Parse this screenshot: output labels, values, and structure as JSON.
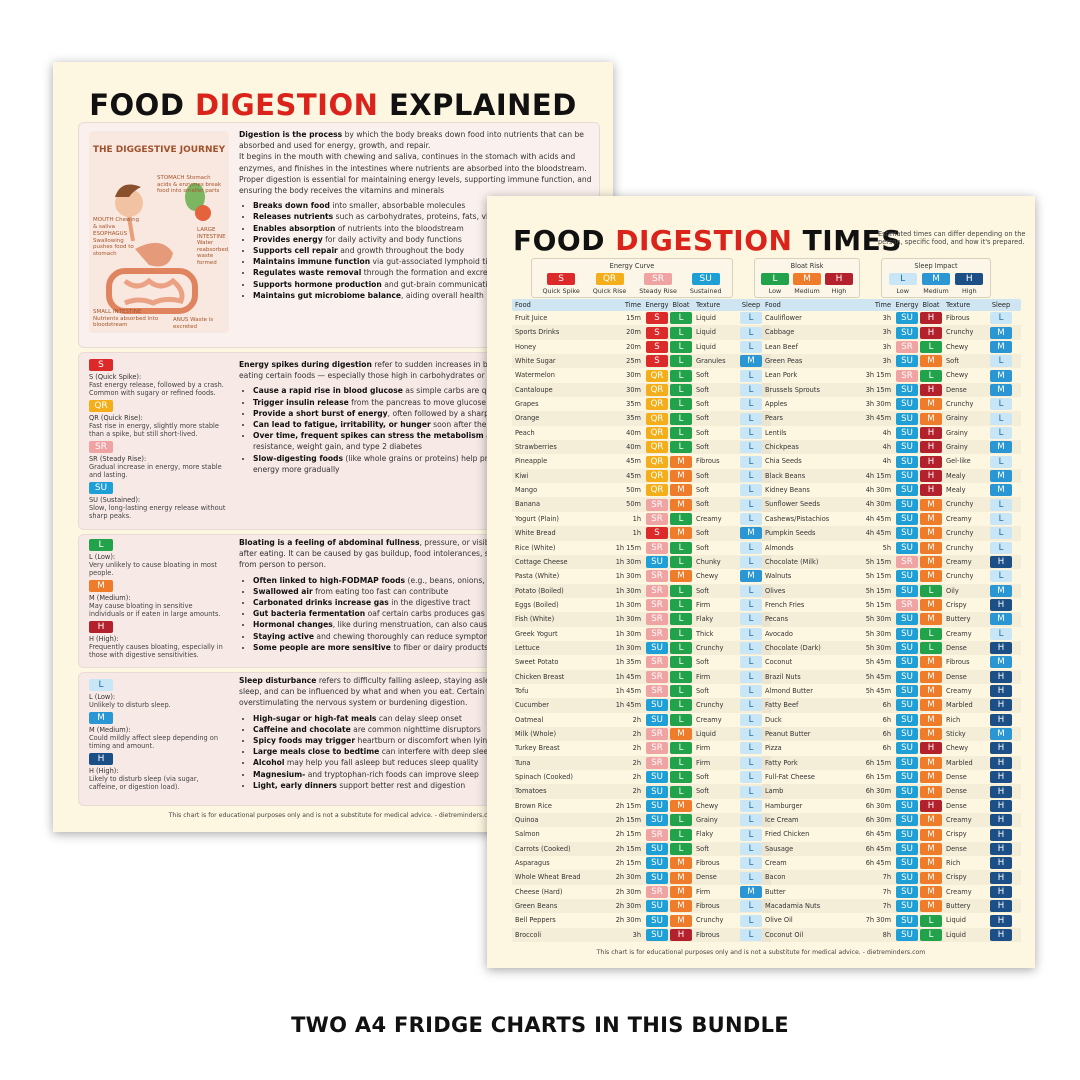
{
  "colors": {
    "S": "#dc2a2a",
    "QR": "#f4ae1a",
    "SR": "#f0a3a3",
    "SU": "#1e9fd6",
    "bL": "#22a24a",
    "bM": "#ee7c2a",
    "bH": "#b3212d",
    "sL": "#c8e6f6",
    "sM": "#2a97d4",
    "sH": "#1b4f85"
  },
  "sheet1": {
    "title_a": "FOOD ",
    "title_b": "DIGESTION",
    "title_c": " EXPLAINED",
    "illustration": {
      "title": "THE DIGGESTIVE JOURNEY",
      "stomach": "STOMACH Stomach acids & enzymes break food into smaller parts",
      "mouth": "MOUTH Chewing & saliva",
      "esophagus": "ESOPHAGUS Swallowing pushes food to stomach",
      "large": "LARGE INTESTINE Water reabsorbed, waste formed",
      "small": "SMALL INTESTINE Nutrients absorbed into bloodstream",
      "anus": "ANUS Waste is excreted"
    },
    "intro": {
      "p1a": "Digestion is the process",
      "p1b": " by which the body breaks down food into nutrients that can be absorbed and used for energy, growth, and repair.",
      "p2": "It begins in the mouth with chewing and saliva, continues in the stomach with acids and enzymes, and finishes in the intestines where nutrients are absorbed into the bloodstream.",
      "p3": "Proper digestion is essential for maintaining energy levels, supporting immune function, and ensuring the body receives the vitamins and minerals",
      "bullets": [
        {
          "b": "Breaks down food",
          "t": " into smaller, absorbable molecules"
        },
        {
          "b": "Releases nutrients",
          "t": " such as carbohydrates, proteins, fats, vitamins"
        },
        {
          "b": "Enables absorption",
          "t": " of nutrients into the bloodstream"
        },
        {
          "b": "Provides energy",
          "t": " for daily activity and body functions"
        },
        {
          "b": "Supports cell repair",
          "t": " and growth throughout the body"
        },
        {
          "b": "Maintains immune function",
          "t": " via gut-associated lymphoid tissue"
        },
        {
          "b": "Regulates waste removal",
          "t": " through the formation and excretion"
        },
        {
          "b": "Supports hormone production",
          "t": " and gut-brain communication"
        },
        {
          "b": "Maintains gut microbiome balance",
          "t": ", aiding overall health"
        }
      ]
    },
    "energy": {
      "legend": [
        {
          "code": "S",
          "label": "S (Quick Spike):",
          "desc": "Fast energy release, followed by a crash. Common with sugary or refined foods."
        },
        {
          "code": "QR",
          "label": "QR (Quick Rise):",
          "desc": "Fast rise in energy, slightly more stable than a spike, but still short-lived."
        },
        {
          "code": "SR",
          "label": "SR (Steady Rise):",
          "desc": "Gradual increase in energy, more stable and lasting."
        },
        {
          "code": "SU",
          "label": "SU (Sustained):",
          "desc": "Slow, long-lasting energy release without sharp peaks."
        }
      ],
      "p1a": "Energy spikes during digestion",
      "p1b": " refer to sudden increases in blood energy levels after eating certain foods — especially those high in carbohydrates or sugars.",
      "bullets": [
        {
          "b": "Cause a rapid rise in blood glucose",
          "t": " as simple carbs are quickly and absorbed"
        },
        {
          "b": "Trigger insulin release",
          "t": " from the pancreas to move glucose into"
        },
        {
          "b": "Provide a short burst of energy",
          "t": ", often followed by a sharp drop “crash”)"
        },
        {
          "b": "Can lead to fatigue, irritability, or hunger",
          "t": " soon after the spike"
        },
        {
          "b": "Over time, frequent spikes can stress the metabolism",
          "t": " and increase risk of insulin resistance, weight gain, and type 2 diabetes"
        },
        {
          "b": "Slow-digesting foods",
          "t": " (like whole grains or proteins) help prevent spikes by releasing energy more gradually"
        }
      ]
    },
    "bloat": {
      "legend": [
        {
          "code": "L",
          "label": "L (Low):",
          "desc": "Very unlikely to cause bloating in most people."
        },
        {
          "code": "M",
          "label": "M (Medium):",
          "desc": "May cause bloating in sensitive individuals or if eaten in large amounts."
        },
        {
          "code": "H",
          "label": "H (High):",
          "desc": "Frequently causes bloating, especially in those with digestive sensitivities."
        }
      ],
      "p1a": "Bloating is a feeling of abdominal fullness",
      "p1b": ", pressure, or visible swelling, often occurs after eating. It can be caused by gas buildup, food intolerances, slow digestion, and varies from person to person.",
      "bullets": [
        {
          "b": "Often linked to high-FODMAP foods",
          "t": " (e.g., beans, onions, wheat)"
        },
        {
          "b": "Swallowed air",
          "t": " from eating too fast can contribute"
        },
        {
          "b": "Carbonated drinks increase gas",
          "t": " in the digestive tract"
        },
        {
          "b": "Gut bacteria fermentation",
          "t": " oaf certain carbs produces gas"
        },
        {
          "b": "Hormonal changes",
          "t": ", like during menstruation, can also cause bloating"
        },
        {
          "b": "Staying active",
          "t": " and chewing thoroughly can reduce symptoms"
        },
        {
          "b": "Some people are more sensitive",
          "t": " to fiber or dairy products"
        }
      ]
    },
    "sleep": {
      "legend": [
        {
          "code": "L",
          "label": "L (Low):",
          "desc": "Unlikely to disturb sleep."
        },
        {
          "code": "M",
          "label": "M (Medium):",
          "desc": "Could mildly affect sleep depending on timing and amount."
        },
        {
          "code": "H",
          "label": "H (High):",
          "desc": "Likely to disturb sleep (via sugar, caffeine, or digestion load)."
        }
      ],
      "p1a": "Sleep disturbance",
      "p1b": " refers to difficulty falling asleep, staying asleep, or achieving restful sleep, and can be influenced by what and when you eat. Certain foods may disrupt sleep by overstimulating the nervous system or burdening digestion.",
      "bullets": [
        {
          "b": "High-sugar or high-fat meals",
          "t": " can delay sleep onset"
        },
        {
          "b": "Caffeine and chocolate",
          "t": " are common nighttime disruptors"
        },
        {
          "b": "Spicy foods may trigger",
          "t": " heartburn or discomfort when lying down"
        },
        {
          "b": "Large meals close to bedtime",
          "t": " can interfere with deep sleep"
        },
        {
          "b": "Alcohol",
          "t": " may help you fall asleep but reduces sleep quality"
        },
        {
          "b": "Magnesium-",
          "t": " and tryptophan-rich foods can improve sleep"
        },
        {
          "b": "Light, early dinners",
          "t": " support better rest and digestion"
        }
      ]
    },
    "footer": "This chart is for educational purposes only and is not a substitute for medical advice. - dietreminders.com"
  },
  "sheet2": {
    "title_a": "FOOD ",
    "title_b": "DIGESTION",
    "title_c": " TIMES",
    "note": "Estimated times can differ depending on the person, specific food, and how it's prepared.",
    "legend_energy": {
      "title": "Energy Curve",
      "items": [
        {
          "code": "S",
          "label": "Quick Spike"
        },
        {
          "code": "QR",
          "label": "Quick Rise"
        },
        {
          "code": "SR",
          "label": "Steady Rise"
        },
        {
          "code": "SU",
          "label": "Sustained"
        }
      ]
    },
    "legend_bloat": {
      "title": "Bloat Risk",
      "items": [
        {
          "code": "L",
          "label": "Low"
        },
        {
          "code": "M",
          "label": "Medium"
        },
        {
          "code": "H",
          "label": "High"
        }
      ]
    },
    "legend_sleep": {
      "title": "Sleep Impact",
      "items": [
        {
          "code": "L",
          "label": "Low"
        },
        {
          "code": "M",
          "label": "Medium"
        },
        {
          "code": "H",
          "label": "High"
        }
      ]
    },
    "headers": {
      "food": "Food",
      "time": "Time",
      "energy": "Energy",
      "bloat": "Bloat",
      "texture": "Texture",
      "sleep": "Sleep"
    },
    "left_rows": [
      [
        "Fruit Juice",
        "15m",
        "S",
        "L",
        "Liquid",
        "L"
      ],
      [
        "Sports Drinks",
        "20m",
        "S",
        "L",
        "Liquid",
        "L"
      ],
      [
        "Honey",
        "20m",
        "S",
        "L",
        "Liquid",
        "L"
      ],
      [
        "White Sugar",
        "25m",
        "S",
        "L",
        "Granules",
        "M"
      ],
      [
        "Watermelon",
        "30m",
        "QR",
        "L",
        "Soft",
        "L"
      ],
      [
        "Cantaloupe",
        "30m",
        "QR",
        "L",
        "Soft",
        "L"
      ],
      [
        "Grapes",
        "35m",
        "QR",
        "L",
        "Soft",
        "L"
      ],
      [
        "Orange",
        "35m",
        "QR",
        "L",
        "Soft",
        "L"
      ],
      [
        "Peach",
        "40m",
        "QR",
        "L",
        "Soft",
        "L"
      ],
      [
        "Strawberries",
        "40m",
        "QR",
        "L",
        "Soft",
        "L"
      ],
      [
        "Pineapple",
        "45m",
        "QR",
        "M",
        "Fibrous",
        "L"
      ],
      [
        "Kiwi",
        "45m",
        "QR",
        "M",
        "Soft",
        "L"
      ],
      [
        "Mango",
        "50m",
        "QR",
        "M",
        "Soft",
        "L"
      ],
      [
        "Banana",
        "50m",
        "SR",
        "M",
        "Soft",
        "L"
      ],
      [
        "Yogurt (Plain)",
        "1h",
        "SR",
        "L",
        "Creamy",
        "L"
      ],
      [
        "White Bread",
        "1h",
        "S",
        "M",
        "Soft",
        "M"
      ],
      [
        "Rice (White)",
        "1h 15m",
        "SR",
        "L",
        "Soft",
        "L"
      ],
      [
        "Cottage Cheese",
        "1h 30m",
        "SU",
        "L",
        "Chunky",
        "L"
      ],
      [
        "Pasta (White)",
        "1h 30m",
        "SR",
        "M",
        "Chewy",
        "M"
      ],
      [
        "Potato (Boiled)",
        "1h 30m",
        "SR",
        "L",
        "Soft",
        "L"
      ],
      [
        "Eggs (Boiled)",
        "1h 30m",
        "SR",
        "L",
        "Firm",
        "L"
      ],
      [
        "Fish (White)",
        "1h 30m",
        "SR",
        "L",
        "Flaky",
        "L"
      ],
      [
        "Greek Yogurt",
        "1h 30m",
        "SR",
        "L",
        "Thick",
        "L"
      ],
      [
        "Lettuce",
        "1h 30m",
        "SU",
        "L",
        "Crunchy",
        "L"
      ],
      [
        "Sweet Potato",
        "1h 35m",
        "SR",
        "L",
        "Soft",
        "L"
      ],
      [
        "Chicken Breast",
        "1h 45m",
        "SR",
        "L",
        "Firm",
        "L"
      ],
      [
        "Tofu",
        "1h 45m",
        "SR",
        "L",
        "Soft",
        "L"
      ],
      [
        "Cucumber",
        "1h 45m",
        "SU",
        "L",
        "Crunchy",
        "L"
      ],
      [
        "Oatmeal",
        "2h",
        "SU",
        "L",
        "Creamy",
        "L"
      ],
      [
        "Milk (Whole)",
        "2h",
        "SR",
        "M",
        "Liquid",
        "L"
      ],
      [
        "Turkey Breast",
        "2h",
        "SR",
        "L",
        "Firm",
        "L"
      ],
      [
        "Tuna",
        "2h",
        "SR",
        "L",
        "Firm",
        "L"
      ],
      [
        "Spinach (Cooked)",
        "2h",
        "SU",
        "L",
        "Soft",
        "L"
      ],
      [
        "Tomatoes",
        "2h",
        "SU",
        "L",
        "Soft",
        "L"
      ],
      [
        "Brown Rice",
        "2h 15m",
        "SU",
        "M",
        "Chewy",
        "L"
      ],
      [
        "Quinoa",
        "2h 15m",
        "SU",
        "L",
        "Grainy",
        "L"
      ],
      [
        "Salmon",
        "2h 15m",
        "SR",
        "L",
        "Flaky",
        "L"
      ],
      [
        "Carrots (Cooked)",
        "2h 15m",
        "SU",
        "L",
        "Soft",
        "L"
      ],
      [
        "Asparagus",
        "2h 15m",
        "SU",
        "M",
        "Fibrous",
        "L"
      ],
      [
        "Whole Wheat Bread",
        "2h 30m",
        "SU",
        "M",
        "Dense",
        "L"
      ],
      [
        "Cheese (Hard)",
        "2h 30m",
        "SR",
        "M",
        "Firm",
        "M"
      ],
      [
        "Green Beans",
        "2h 30m",
        "SU",
        "M",
        "Fibrous",
        "L"
      ],
      [
        "Bell Peppers",
        "2h 30m",
        "SU",
        "M",
        "Crunchy",
        "L"
      ],
      [
        "Broccoli",
        "3h",
        "SU",
        "H",
        "Fibrous",
        "L"
      ]
    ],
    "right_rows": [
      [
        "Cauliflower",
        "3h",
        "SU",
        "H",
        "Fibrous",
        "L"
      ],
      [
        "Cabbage",
        "3h",
        "SU",
        "H",
        "Crunchy",
        "M"
      ],
      [
        "Lean Beef",
        "3h",
        "SR",
        "L",
        "Chewy",
        "M"
      ],
      [
        "Green Peas",
        "3h",
        "SU",
        "M",
        "Soft",
        "L"
      ],
      [
        "Lean Pork",
        "3h 15m",
        "SR",
        "L",
        "Chewy",
        "M"
      ],
      [
        "Brussels Sprouts",
        "3h 15m",
        "SU",
        "H",
        "Dense",
        "M"
      ],
      [
        "Apples",
        "3h 30m",
        "SU",
        "M",
        "Crunchy",
        "L"
      ],
      [
        "Pears",
        "3h 45m",
        "SU",
        "M",
        "Grainy",
        "L"
      ],
      [
        "Lentils",
        "4h",
        "SU",
        "H",
        "Grainy",
        "L"
      ],
      [
        "Chickpeas",
        "4h",
        "SU",
        "H",
        "Grainy",
        "M"
      ],
      [
        "Chia Seeds",
        "4h",
        "SU",
        "H",
        "Gel-like",
        "L"
      ],
      [
        "Black Beans",
        "4h 15m",
        "SU",
        "H",
        "Mealy",
        "M"
      ],
      [
        "Kidney Beans",
        "4h 30m",
        "SU",
        "H",
        "Mealy",
        "M"
      ],
      [
        "Sunflower Seeds",
        "4h 30m",
        "SU",
        "M",
        "Crunchy",
        "L"
      ],
      [
        "Cashews/Pistachios",
        "4h 45m",
        "SU",
        "M",
        "Creamy",
        "L"
      ],
      [
        "Pumpkin Seeds",
        "4h 45m",
        "SU",
        "M",
        "Crunchy",
        "L"
      ],
      [
        "Almonds",
        "5h",
        "SU",
        "M",
        "Crunchy",
        "L"
      ],
      [
        "Chocolate (Milk)",
        "5h 15m",
        "SR",
        "M",
        "Creamy",
        "H"
      ],
      [
        "Walnuts",
        "5h 15m",
        "SU",
        "M",
        "Crunchy",
        "L"
      ],
      [
        "Olives",
        "5h 15m",
        "SU",
        "L",
        "Oily",
        "M"
      ],
      [
        "French Fries",
        "5h 15m",
        "SR",
        "M",
        "Crispy",
        "H"
      ],
      [
        "Pecans",
        "5h 30m",
        "SU",
        "M",
        "Buttery",
        "M"
      ],
      [
        "Avocado",
        "5h 30m",
        "SU",
        "L",
        "Creamy",
        "L"
      ],
      [
        "Chocolate (Dark)",
        "5h 30m",
        "SU",
        "L",
        "Dense",
        "H"
      ],
      [
        "Coconut",
        "5h 45m",
        "SU",
        "M",
        "Fibrous",
        "M"
      ],
      [
        "Brazil Nuts",
        "5h 45m",
        "SU",
        "M",
        "Dense",
        "H"
      ],
      [
        "Almond Butter",
        "5h 45m",
        "SU",
        "M",
        "Creamy",
        "H"
      ],
      [
        "Fatty Beef",
        "6h",
        "SU",
        "M",
        "Marbled",
        "H"
      ],
      [
        "Duck",
        "6h",
        "SU",
        "M",
        "Rich",
        "H"
      ],
      [
        "Peanut Butter",
        "6h",
        "SU",
        "M",
        "Sticky",
        "M"
      ],
      [
        "Pizza",
        "6h",
        "SU",
        "H",
        "Chewy",
        "H"
      ],
      [
        "Fatty Pork",
        "6h 15m",
        "SU",
        "M",
        "Marbled",
        "H"
      ],
      [
        "Full-Fat Cheese",
        "6h 15m",
        "SU",
        "M",
        "Dense",
        "H"
      ],
      [
        "Lamb",
        "6h 30m",
        "SU",
        "M",
        "Dense",
        "H"
      ],
      [
        "Hamburger",
        "6h 30m",
        "SU",
        "H",
        "Dense",
        "H"
      ],
      [
        "Ice Cream",
        "6h 30m",
        "SU",
        "M",
        "Creamy",
        "H"
      ],
      [
        "Fried Chicken",
        "6h 45m",
        "SU",
        "M",
        "Crispy",
        "H"
      ],
      [
        "Sausage",
        "6h 45m",
        "SU",
        "M",
        "Dense",
        "H"
      ],
      [
        "Cream",
        "6h 45m",
        "SU",
        "M",
        "Rich",
        "H"
      ],
      [
        "Bacon",
        "7h",
        "SU",
        "M",
        "Crispy",
        "H"
      ],
      [
        "Butter",
        "7h",
        "SU",
        "M",
        "Creamy",
        "H"
      ],
      [
        "Macadamia Nuts",
        "7h",
        "SU",
        "M",
        "Buttery",
        "H"
      ],
      [
        "Olive Oil",
        "7h 30m",
        "SU",
        "L",
        "Liquid",
        "H"
      ],
      [
        "Coconut Oil",
        "8h",
        "SU",
        "L",
        "Liquid",
        "H"
      ]
    ],
    "footer": "This chart is for educational purposes only and is not a substitute for medical advice. - dietreminders.com"
  },
  "caption": "TWO A4 FRIDGE CHARTS IN THIS BUNDLE"
}
